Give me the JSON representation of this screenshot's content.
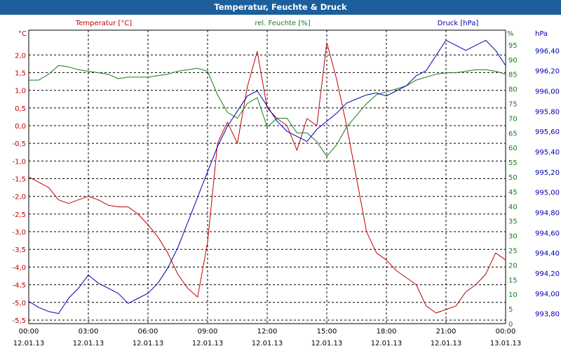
{
  "window": {
    "title": "Temperatur, Feuchte & Druck"
  },
  "colors": {
    "temperature": "#c00000",
    "humidity": "#1a7a1a",
    "pressure": "#0000b0",
    "title_bar": "#1c5f9c",
    "grid": "#000000"
  },
  "chart_data": {
    "type": "line",
    "title": "Temperatur, Feuchte & Druck",
    "x_ticks": [
      {
        "time": "00:00",
        "date": "12.01.13"
      },
      {
        "time": "03:00",
        "date": "12.01.13"
      },
      {
        "time": "06:00",
        "date": "12.01.13"
      },
      {
        "time": "09:00",
        "date": "12.01.13"
      },
      {
        "time": "12:00",
        "date": "12.01.13"
      },
      {
        "time": "15:00",
        "date": "12.01.13"
      },
      {
        "time": "18:00",
        "date": "12.01.13"
      },
      {
        "time": "21:00",
        "date": "12.01.13"
      },
      {
        "time": "00:00",
        "date": "13.01.13"
      }
    ],
    "x_unit": "hours",
    "xlim": [
      0,
      24
    ],
    "grid": true,
    "axes": {
      "temperature": {
        "label": "Temperatur [°C]",
        "unit": "°C",
        "ylim": [
          -5.6,
          2.7
        ],
        "ticks": [
          "2,0",
          "1,5",
          "1,0",
          "0,5",
          "0,0",
          "-0,5",
          "-1,0",
          "-1,5",
          "-2,0",
          "-2,5",
          "-3,0",
          "-3,5",
          "-4,0",
          "-4,5",
          "-5,0",
          "-5,5"
        ]
      },
      "humidity": {
        "label": "rel. Feuchte [%]",
        "unit": "%",
        "ylim": [
          0,
          100
        ],
        "ticks": [
          "95",
          "90",
          "85",
          "80",
          "75",
          "70",
          "65",
          "60",
          "55",
          "50",
          "45",
          "40",
          "35",
          "30",
          "25",
          "20",
          "15",
          "10",
          "5",
          "0"
        ]
      },
      "pressure": {
        "label": "Druck [hPa]",
        "unit": "hPa",
        "ylim": [
          993.7,
          996.6
        ],
        "ticks": [
          "996,40",
          "996,20",
          "996,00",
          "995,80",
          "995,60",
          "995,40",
          "995,20",
          "995,00",
          "994,80",
          "994,60",
          "994,40",
          "994,20",
          "994,00",
          "993,80"
        ]
      }
    },
    "series": [
      {
        "name": "Temperatur [°C]",
        "axis": "temperature",
        "color": "#c00000",
        "x": [
          0,
          0.5,
          1,
          1.5,
          2,
          2.5,
          3,
          3.5,
          4,
          4.5,
          5,
          5.5,
          6,
          6.5,
          7,
          7.5,
          8,
          8.5,
          9,
          9.5,
          10,
          10.5,
          11,
          11.5,
          12,
          12.5,
          13,
          13.5,
          14,
          14.5,
          15,
          15.5,
          16,
          16.5,
          17,
          17.5,
          18,
          18.5,
          19,
          19.5,
          20,
          20.5,
          21,
          21.5,
          22,
          22.5,
          23,
          23.5,
          24
        ],
        "values": [
          -1.45,
          -1.6,
          -1.75,
          -2.1,
          -2.2,
          -2.1,
          -2.0,
          -2.1,
          -2.25,
          -2.3,
          -2.3,
          -2.5,
          -2.8,
          -3.15,
          -3.6,
          -4.2,
          -4.6,
          -4.85,
          -3.3,
          -0.5,
          0.1,
          -0.5,
          1.1,
          2.1,
          0.5,
          0.2,
          0.0,
          -0.7,
          0.2,
          0.0,
          2.35,
          1.3,
          0.0,
          -1.5,
          -3.0,
          -3.6,
          -3.8,
          -4.1,
          -4.3,
          -4.5,
          -5.1,
          -5.3,
          -5.2,
          -5.1,
          -4.7,
          -4.5,
          -4.2,
          -3.6,
          -3.8
        ]
      },
      {
        "name": "rel. Feuchte [%]",
        "axis": "humidity",
        "color": "#1a7a1a",
        "x": [
          0,
          0.5,
          1,
          1.5,
          2,
          2.5,
          3,
          3.5,
          4,
          4.5,
          5,
          5.5,
          6,
          6.5,
          7,
          7.5,
          8,
          8.5,
          9,
          9.5,
          10,
          10.5,
          11,
          11.5,
          12,
          12.5,
          13,
          13.5,
          14,
          14.5,
          15,
          15.5,
          16,
          16.5,
          17,
          17.5,
          18,
          18.5,
          19,
          19.5,
          20,
          20.5,
          21,
          21.5,
          22,
          22.5,
          23,
          23.5,
          24
        ],
        "values": [
          83,
          83,
          85,
          88,
          87.5,
          86.5,
          86,
          85.5,
          85,
          83.5,
          84,
          84,
          84,
          84.5,
          85,
          86,
          86.5,
          87,
          86,
          78,
          72,
          70,
          75,
          77,
          67,
          70,
          70,
          65,
          65,
          62,
          57,
          61,
          67,
          71,
          75,
          78,
          79,
          80,
          81,
          83,
          84,
          85,
          85.5,
          85.5,
          86,
          86.5,
          86.5,
          86,
          85
        ]
      },
      {
        "name": "Druck [hPa]",
        "axis": "pressure",
        "color": "#0000b0",
        "x": [
          0,
          0.5,
          1,
          1.5,
          2,
          2.5,
          3,
          3.5,
          4,
          4.5,
          5,
          5.5,
          6,
          6.5,
          7,
          7.5,
          8,
          8.5,
          9,
          9.5,
          10,
          10.5,
          11,
          11.5,
          12,
          12.5,
          13,
          13.5,
          14,
          14.5,
          15,
          15.5,
          16,
          16.5,
          17,
          17.5,
          18,
          18.5,
          19,
          19.5,
          20,
          20.5,
          21,
          21.5,
          22,
          22.5,
          23,
          23.5,
          24
        ],
        "values": [
          993.92,
          993.86,
          993.82,
          993.8,
          993.95,
          994.05,
          994.18,
          994.1,
          994.05,
          994.0,
          993.9,
          993.95,
          994.0,
          994.1,
          994.25,
          994.45,
          994.7,
          994.95,
          995.2,
          995.45,
          995.65,
          995.8,
          995.95,
          996.0,
          995.85,
          995.7,
          995.6,
          995.55,
          995.5,
          995.62,
          995.7,
          995.78,
          995.88,
          995.92,
          995.96,
          995.98,
          995.95,
          996.0,
          996.05,
          996.15,
          996.2,
          996.35,
          996.5,
          996.45,
          996.4,
          996.45,
          996.5,
          996.4,
          996.25
        ]
      }
    ]
  }
}
